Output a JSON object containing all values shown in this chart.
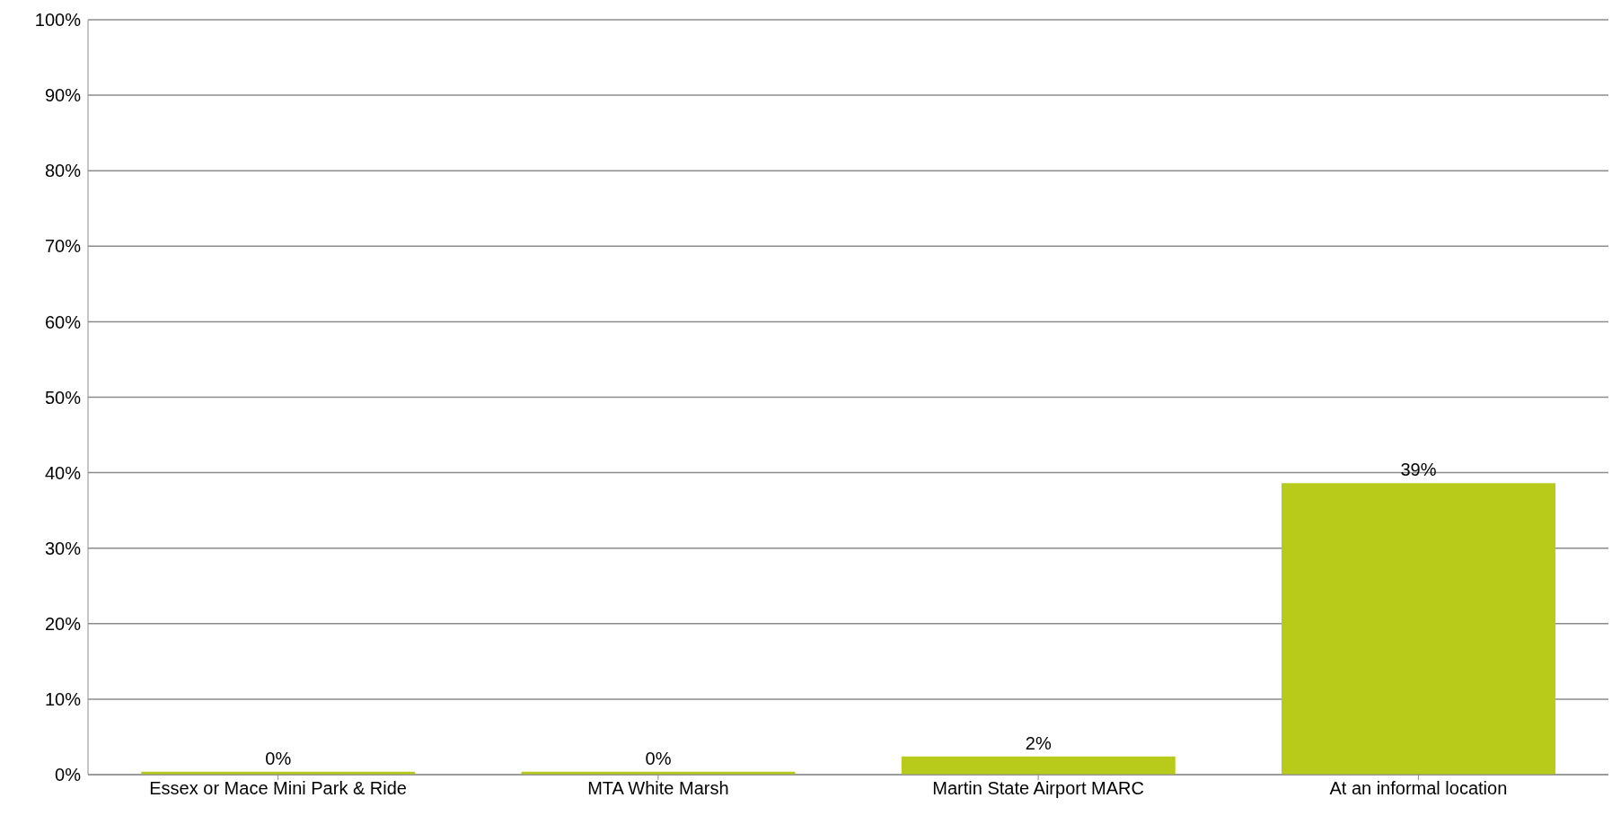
{
  "chart_data": {
    "type": "bar",
    "categories": [
      "Essex or Mace Mini Park & Ride",
      "MTA White Marsh",
      "Martin State Airport MARC",
      "At an informal location"
    ],
    "values": [
      0.4,
      0.4,
      2.4,
      38.6
    ],
    "value_labels": [
      "0%",
      "0%",
      "2%",
      "39%"
    ],
    "color": "#b8cb1a",
    "ylim": [
      0,
      100
    ],
    "yticks": [
      {
        "value": 0,
        "label": "0%"
      },
      {
        "value": 10,
        "label": "10%"
      },
      {
        "value": 20,
        "label": "20%"
      },
      {
        "value": 30,
        "label": "30%"
      },
      {
        "value": 40,
        "label": "40%"
      },
      {
        "value": 50,
        "label": "50%"
      },
      {
        "value": 60,
        "label": "60%"
      },
      {
        "value": 70,
        "label": "70%"
      },
      {
        "value": 80,
        "label": "80%"
      },
      {
        "value": 90,
        "label": "90%"
      },
      {
        "value": 100,
        "label": "100%"
      }
    ],
    "grid": "y"
  }
}
